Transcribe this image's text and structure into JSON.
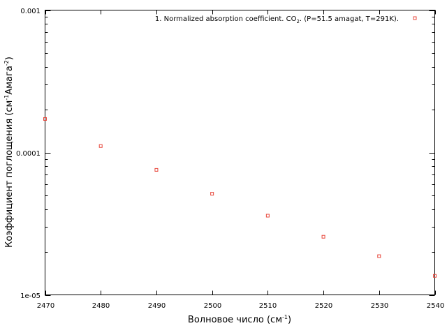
{
  "chart_data": {
    "type": "scatter",
    "title": "",
    "xlabel_main": "Волновое число (см",
    "xlabel_sup": "-1",
    "xlabel_end": ")",
    "ylabel_main": "Коэффициент поглощения (см",
    "ylabel_sup1": "-1",
    "ylabel_mid": "Амага",
    "ylabel_sup2": "-2",
    "ylabel_end": ")",
    "xlim": [
      2470,
      2540
    ],
    "ylim": [
      1e-05,
      0.001
    ],
    "y_scale": "log",
    "x_ticks": [
      "2470",
      "2480",
      "2490",
      "2500",
      "2510",
      "2520",
      "2530",
      "2540"
    ],
    "y_ticks": [
      "1e-05",
      "0.0001",
      "0.001"
    ],
    "grid": false,
    "legend_position": "top-right",
    "series": [
      {
        "legend_pre": "1. Normalized absorption coefficient. CO",
        "legend_sub": "2",
        "legend_post": ". (P=51.5 amagat, T=291K).",
        "color": "#e8483c",
        "marker": "open-square",
        "x": [
          2470,
          2480,
          2490,
          2500,
          2510,
          2520,
          2530,
          2540
        ],
        "y": [
          0.000172,
          0.000111,
          7.55e-05,
          5.13e-05,
          3.6e-05,
          2.56e-05,
          1.87e-05,
          1.36e-05
        ]
      }
    ]
  }
}
